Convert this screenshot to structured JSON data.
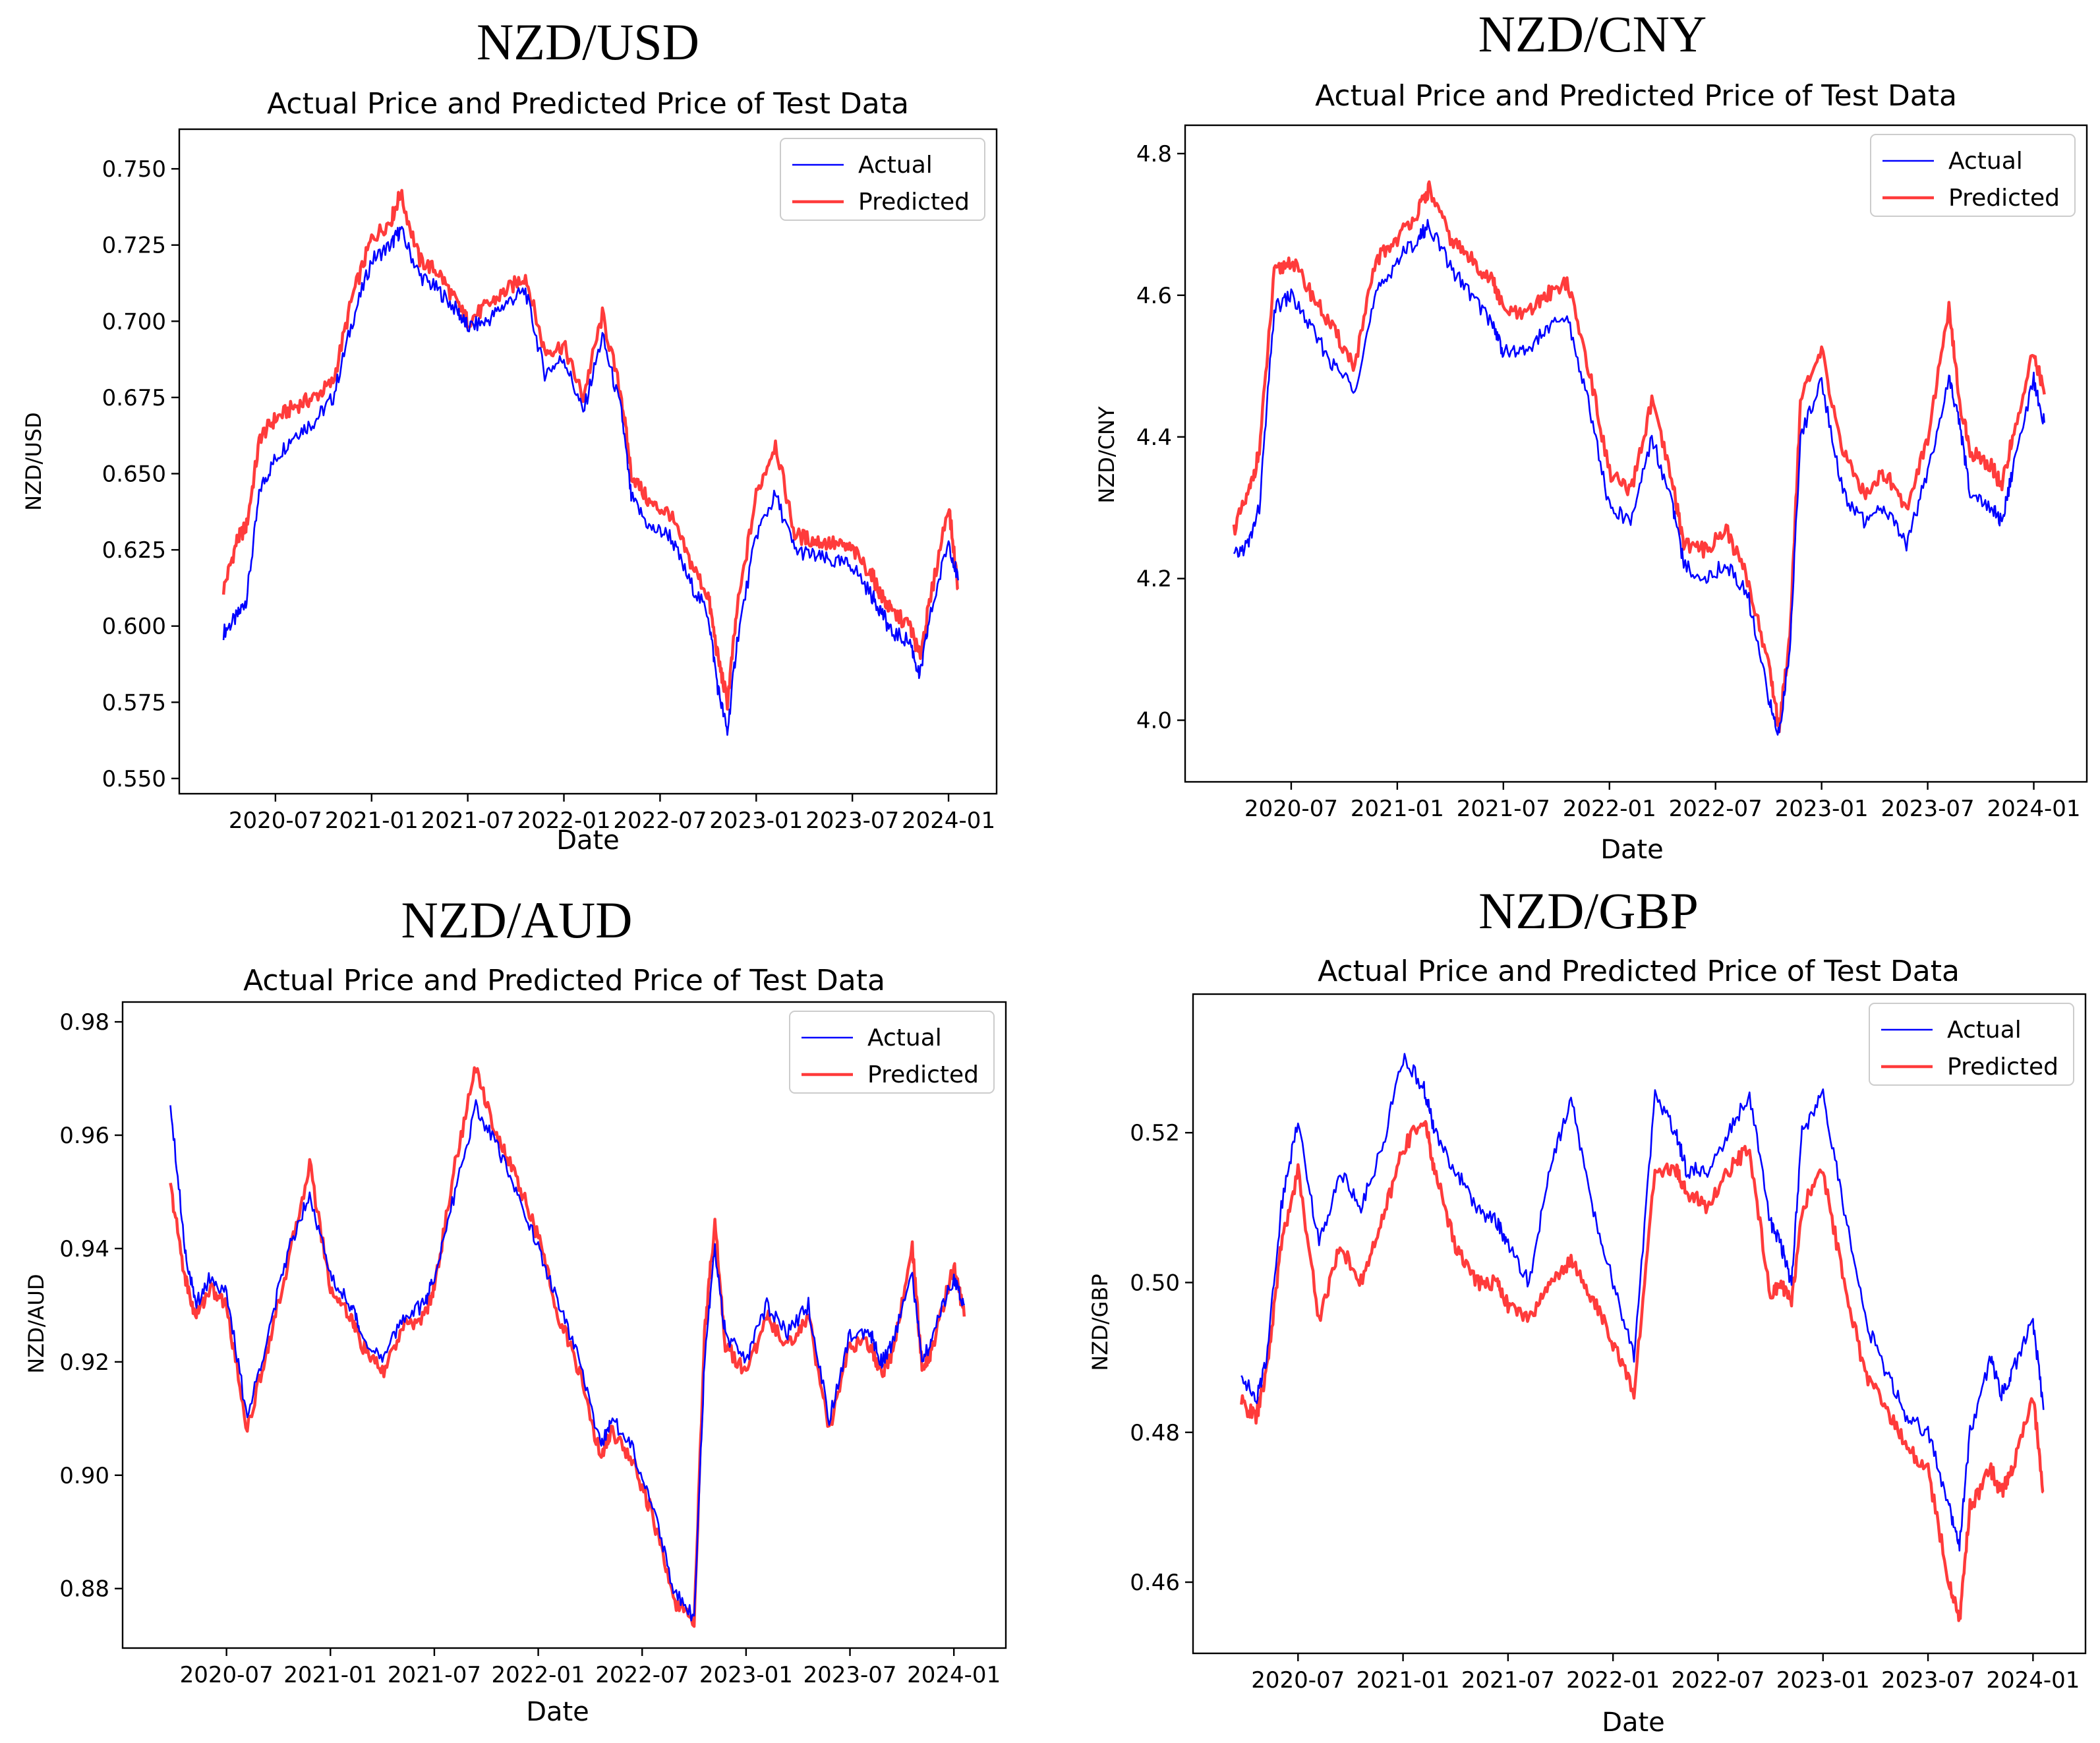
{
  "chart_data": [
    {
      "type": "line",
      "pair_title": "NZD/USD",
      "title": "Actual Price and Predicted Price of Test Data",
      "xlabel": "Date",
      "ylabel": "NZD/USD",
      "x_ticks": [
        "2020-07",
        "2021-01",
        "2021-07",
        "2022-01",
        "2022-07",
        "2023-01",
        "2023-07",
        "2024-01"
      ],
      "y_ticks": [
        "0.550",
        "0.575",
        "0.600",
        "0.625",
        "0.650",
        "0.675",
        "0.700",
        "0.725",
        "0.750"
      ],
      "xlim": [
        2020.0,
        2024.25
      ],
      "ylim": [
        0.545,
        0.763
      ],
      "legend": [
        "Actual",
        "Predicted"
      ],
      "legend_position": "top-right",
      "series": [
        {
          "name": "Actual",
          "color": "#0000ff",
          "x": [
            2020.23,
            2020.3,
            2020.35,
            2020.42,
            2020.5,
            2020.6,
            2020.7,
            2020.8,
            2020.9,
            2021.0,
            2021.1,
            2021.15,
            2021.25,
            2021.35,
            2021.45,
            2021.5,
            2021.6,
            2021.7,
            2021.8,
            2021.9,
            2022.0,
            2022.1,
            2022.2,
            2022.3,
            2022.35,
            2022.45,
            2022.55,
            2022.65,
            2022.75,
            2022.8,
            2022.85,
            2022.9,
            2023.0,
            2023.1,
            2023.2,
            2023.3,
            2023.4,
            2023.5,
            2023.6,
            2023.65,
            2023.7,
            2023.8,
            2023.85,
            2023.9,
            2024.0,
            2024.05
          ],
          "y": [
            0.598,
            0.603,
            0.609,
            0.645,
            0.655,
            0.663,
            0.667,
            0.675,
            0.7,
            0.72,
            0.725,
            0.73,
            0.715,
            0.71,
            0.703,
            0.698,
            0.7,
            0.706,
            0.71,
            0.683,
            0.688,
            0.67,
            0.695,
            0.67,
            0.642,
            0.632,
            0.63,
            0.615,
            0.604,
            0.58,
            0.565,
            0.595,
            0.63,
            0.643,
            0.625,
            0.623,
            0.621,
            0.62,
            0.61,
            0.605,
            0.598,
            0.595,
            0.583,
            0.602,
            0.628,
            0.615
          ]
        },
        {
          "name": "Predicted",
          "color": "#ff3b3b",
          "x": [
            2020.23,
            2020.3,
            2020.35,
            2020.42,
            2020.5,
            2020.6,
            2020.7,
            2020.8,
            2020.9,
            2021.0,
            2021.1,
            2021.15,
            2021.25,
            2021.35,
            2021.45,
            2021.5,
            2021.6,
            2021.7,
            2021.8,
            2021.9,
            2022.0,
            2022.1,
            2022.2,
            2022.3,
            2022.35,
            2022.45,
            2022.55,
            2022.65,
            2022.75,
            2022.8,
            2022.85,
            2022.9,
            2023.0,
            2023.1,
            2023.2,
            2023.3,
            2023.4,
            2023.5,
            2023.6,
            2023.65,
            2023.7,
            2023.8,
            2023.85,
            2023.9,
            2024.0,
            2024.05
          ],
          "y": [
            0.612,
            0.628,
            0.633,
            0.662,
            0.668,
            0.672,
            0.675,
            0.68,
            0.708,
            0.727,
            0.733,
            0.742,
            0.72,
            0.716,
            0.705,
            0.7,
            0.705,
            0.71,
            0.715,
            0.69,
            0.692,
            0.675,
            0.702,
            0.675,
            0.65,
            0.64,
            0.637,
            0.622,
            0.61,
            0.59,
            0.575,
            0.605,
            0.643,
            0.66,
            0.63,
            0.628,
            0.627,
            0.625,
            0.617,
            0.61,
            0.605,
            0.6,
            0.59,
            0.607,
            0.64,
            0.612
          ]
        }
      ]
    },
    {
      "type": "line",
      "pair_title": "NZD/CNY",
      "title": "Actual Price and Predicted Price of Test Data",
      "xlabel": "Date",
      "ylabel": "NZD/CNY",
      "x_ticks": [
        "2020-07",
        "2021-01",
        "2021-07",
        "2022-01",
        "2022-07",
        "2023-01",
        "2023-07",
        "2024-01"
      ],
      "y_ticks": [
        "4.0",
        "4.2",
        "4.4",
        "4.6",
        "4.8"
      ],
      "xlim": [
        2020.0,
        2024.25
      ],
      "ylim": [
        3.913,
        4.84
      ],
      "legend": [
        "Actual",
        "Predicted"
      ],
      "legend_position": "top-right",
      "series": [
        {
          "name": "Actual",
          "color": "#0000ff",
          "x": [
            2020.23,
            2020.3,
            2020.35,
            2020.42,
            2020.5,
            2020.6,
            2020.7,
            2020.8,
            2020.9,
            2021.0,
            2021.1,
            2021.15,
            2021.25,
            2021.35,
            2021.45,
            2021.5,
            2021.6,
            2021.7,
            2021.8,
            2021.9,
            2022.0,
            2022.1,
            2022.2,
            2022.3,
            2022.35,
            2022.45,
            2022.55,
            2022.65,
            2022.75,
            2022.8,
            2022.85,
            2022.9,
            2023.0,
            2023.1,
            2023.2,
            2023.3,
            2023.4,
            2023.5,
            2023.6,
            2023.65,
            2023.7,
            2023.8,
            2023.85,
            2023.9,
            2024.0,
            2024.05
          ],
          "y": [
            4.23,
            4.25,
            4.3,
            4.58,
            4.6,
            4.55,
            4.5,
            4.47,
            4.6,
            4.65,
            4.68,
            4.7,
            4.64,
            4.6,
            4.56,
            4.52,
            4.52,
            4.55,
            4.57,
            4.45,
            4.3,
            4.28,
            4.4,
            4.3,
            4.22,
            4.2,
            4.22,
            4.18,
            4.03,
            3.98,
            4.1,
            4.4,
            4.48,
            4.32,
            4.28,
            4.3,
            4.25,
            4.35,
            4.48,
            4.42,
            4.32,
            4.3,
            4.28,
            4.35,
            4.48,
            4.42
          ]
        },
        {
          "name": "Predicted",
          "color": "#ff3b3b",
          "x": [
            2020.23,
            2020.3,
            2020.35,
            2020.42,
            2020.5,
            2020.6,
            2020.7,
            2020.8,
            2020.9,
            2021.0,
            2021.1,
            2021.15,
            2021.25,
            2021.35,
            2021.45,
            2021.5,
            2021.6,
            2021.7,
            2021.8,
            2021.9,
            2022.0,
            2022.1,
            2022.2,
            2022.3,
            2022.35,
            2022.45,
            2022.55,
            2022.65,
            2022.75,
            2022.8,
            2022.85,
            2022.9,
            2023.0,
            2023.1,
            2023.2,
            2023.3,
            2023.4,
            2023.5,
            2023.6,
            2023.65,
            2023.7,
            2023.8,
            2023.85,
            2023.9,
            2024.0,
            2024.05
          ],
          "y": [
            4.27,
            4.32,
            4.38,
            4.63,
            4.65,
            4.6,
            4.55,
            4.5,
            4.65,
            4.68,
            4.72,
            4.75,
            4.68,
            4.65,
            4.62,
            4.58,
            4.57,
            4.6,
            4.62,
            4.5,
            4.35,
            4.32,
            4.45,
            4.33,
            4.25,
            4.24,
            4.27,
            4.2,
            4.08,
            3.99,
            4.12,
            4.45,
            4.52,
            4.38,
            4.32,
            4.35,
            4.3,
            4.4,
            4.58,
            4.45,
            4.38,
            4.36,
            4.33,
            4.4,
            4.52,
            4.46
          ]
        }
      ]
    },
    {
      "type": "line",
      "pair_title": "NZD/AUD",
      "title": "Actual Price and Predicted Price of Test Data",
      "xlabel": "Date",
      "ylabel": "NZD/AUD",
      "x_ticks": [
        "2020-07",
        "2021-01",
        "2021-07",
        "2022-01",
        "2022-07",
        "2023-01",
        "2023-07",
        "2024-01"
      ],
      "y_ticks": [
        "0.88",
        "0.90",
        "0.92",
        "0.94",
        "0.96",
        "0.98"
      ],
      "xlim": [
        2020.0,
        2024.25
      ],
      "ylim": [
        0.8695,
        0.9835
      ],
      "legend": [
        "Actual",
        "Predicted"
      ],
      "legend_position": "top-right",
      "series": [
        {
          "name": "Actual",
          "color": "#0000ff",
          "x": [
            2020.23,
            2020.3,
            2020.35,
            2020.42,
            2020.5,
            2020.6,
            2020.7,
            2020.8,
            2020.9,
            2021.0,
            2021.1,
            2021.15,
            2021.25,
            2021.35,
            2021.45,
            2021.5,
            2021.6,
            2021.7,
            2021.8,
            2021.9,
            2022.0,
            2022.1,
            2022.2,
            2022.3,
            2022.35,
            2022.45,
            2022.55,
            2022.65,
            2022.75,
            2022.8,
            2022.85,
            2022.9,
            2023.0,
            2023.1,
            2023.2,
            2023.3,
            2023.4,
            2023.5,
            2023.6,
            2023.65,
            2023.7,
            2023.8,
            2023.85,
            2023.9,
            2024.0,
            2024.05
          ],
          "y": [
            0.966,
            0.94,
            0.93,
            0.935,
            0.932,
            0.91,
            0.925,
            0.94,
            0.95,
            0.935,
            0.93,
            0.925,
            0.92,
            0.928,
            0.93,
            0.935,
            0.95,
            0.965,
            0.958,
            0.95,
            0.94,
            0.93,
            0.92,
            0.905,
            0.91,
            0.905,
            0.895,
            0.88,
            0.875,
            0.92,
            0.94,
            0.925,
            0.92,
            0.93,
            0.925,
            0.93,
            0.91,
            0.925,
            0.925,
            0.92,
            0.923,
            0.935,
            0.92,
            0.925,
            0.935,
            0.93
          ]
        },
        {
          "name": "Predicted",
          "color": "#ff3b3b",
          "x": [
            2020.23,
            2020.3,
            2020.35,
            2020.42,
            2020.5,
            2020.6,
            2020.7,
            2020.8,
            2020.9,
            2021.0,
            2021.1,
            2021.15,
            2021.25,
            2021.35,
            2021.45,
            2021.5,
            2021.6,
            2021.7,
            2021.8,
            2021.9,
            2022.0,
            2022.1,
            2022.2,
            2022.3,
            2022.35,
            2022.45,
            2022.55,
            2022.65,
            2022.75,
            2022.8,
            2022.85,
            2022.9,
            2023.0,
            2023.1,
            2023.2,
            2023.3,
            2023.4,
            2023.5,
            2023.6,
            2023.65,
            2023.7,
            2023.8,
            2023.85,
            2023.9,
            2024.0,
            2024.05
          ],
          "y": [
            0.951,
            0.935,
            0.928,
            0.933,
            0.93,
            0.908,
            0.923,
            0.938,
            0.955,
            0.933,
            0.928,
            0.923,
            0.918,
            0.926,
            0.928,
            0.933,
            0.955,
            0.972,
            0.96,
            0.952,
            0.942,
            0.928,
            0.918,
            0.903,
            0.908,
            0.903,
            0.893,
            0.878,
            0.874,
            0.925,
            0.945,
            0.923,
            0.918,
            0.928,
            0.923,
            0.928,
            0.908,
            0.923,
            0.923,
            0.918,
            0.921,
            0.94,
            0.918,
            0.923,
            0.937,
            0.928
          ]
        }
      ]
    },
    {
      "type": "line",
      "pair_title": "NZD/GBP",
      "title": "Actual Price and Predicted Price of Test Data",
      "xlabel": "Date",
      "ylabel": "NZD/GBP",
      "x_ticks": [
        "2020-07",
        "2021-01",
        "2021-07",
        "2022-01",
        "2022-07",
        "2023-01",
        "2023-07",
        "2024-01"
      ],
      "y_ticks": [
        "0.46",
        "0.48",
        "0.50",
        "0.52"
      ],
      "xlim": [
        2020.0,
        2024.25
      ],
      "ylim": [
        0.4505,
        0.5385
      ],
      "legend": [
        "Actual",
        "Predicted"
      ],
      "legend_position": "top-right",
      "series": [
        {
          "name": "Actual",
          "color": "#0000ff",
          "x": [
            2020.23,
            2020.3,
            2020.35,
            2020.42,
            2020.5,
            2020.6,
            2020.7,
            2020.8,
            2020.9,
            2021.0,
            2021.1,
            2021.15,
            2021.25,
            2021.35,
            2021.45,
            2021.5,
            2021.6,
            2021.7,
            2021.8,
            2021.9,
            2022.0,
            2022.1,
            2022.2,
            2022.3,
            2022.35,
            2022.45,
            2022.55,
            2022.65,
            2022.75,
            2022.8,
            2022.85,
            2022.9,
            2023.0,
            2023.1,
            2023.2,
            2023.3,
            2023.4,
            2023.5,
            2023.6,
            2023.65,
            2023.7,
            2023.8,
            2023.85,
            2023.9,
            2024.0,
            2024.05
          ],
          "y": [
            0.488,
            0.484,
            0.49,
            0.51,
            0.522,
            0.505,
            0.515,
            0.51,
            0.518,
            0.53,
            0.526,
            0.52,
            0.515,
            0.51,
            0.508,
            0.505,
            0.5,
            0.515,
            0.525,
            0.51,
            0.5,
            0.49,
            0.525,
            0.52,
            0.515,
            0.515,
            0.52,
            0.525,
            0.508,
            0.505,
            0.5,
            0.52,
            0.525,
            0.51,
            0.495,
            0.488,
            0.482,
            0.48,
            0.47,
            0.465,
            0.48,
            0.49,
            0.485,
            0.488,
            0.495,
            0.483
          ]
        },
        {
          "name": "Predicted",
          "color": "#ff3b3b",
          "x": [
            2020.23,
            2020.3,
            2020.35,
            2020.42,
            2020.5,
            2020.6,
            2020.7,
            2020.8,
            2020.9,
            2021.0,
            2021.1,
            2021.15,
            2021.25,
            2021.35,
            2021.45,
            2021.5,
            2021.6,
            2021.7,
            2021.8,
            2021.9,
            2022.0,
            2022.1,
            2022.2,
            2022.3,
            2022.35,
            2022.45,
            2022.55,
            2022.65,
            2022.75,
            2022.8,
            2022.85,
            2022.9,
            2023.0,
            2023.1,
            2023.2,
            2023.3,
            2023.4,
            2023.5,
            2023.6,
            2023.65,
            2023.7,
            2023.8,
            2023.85,
            2023.9,
            2024.0,
            2024.05
          ],
          "y": [
            0.484,
            0.482,
            0.488,
            0.505,
            0.515,
            0.495,
            0.505,
            0.5,
            0.508,
            0.518,
            0.522,
            0.515,
            0.505,
            0.5,
            0.5,
            0.497,
            0.495,
            0.5,
            0.503,
            0.498,
            0.492,
            0.485,
            0.515,
            0.515,
            0.512,
            0.51,
            0.515,
            0.518,
            0.498,
            0.5,
            0.497,
            0.51,
            0.515,
            0.5,
            0.488,
            0.483,
            0.478,
            0.475,
            0.46,
            0.455,
            0.47,
            0.475,
            0.472,
            0.475,
            0.485,
            0.472
          ]
        }
      ]
    }
  ]
}
